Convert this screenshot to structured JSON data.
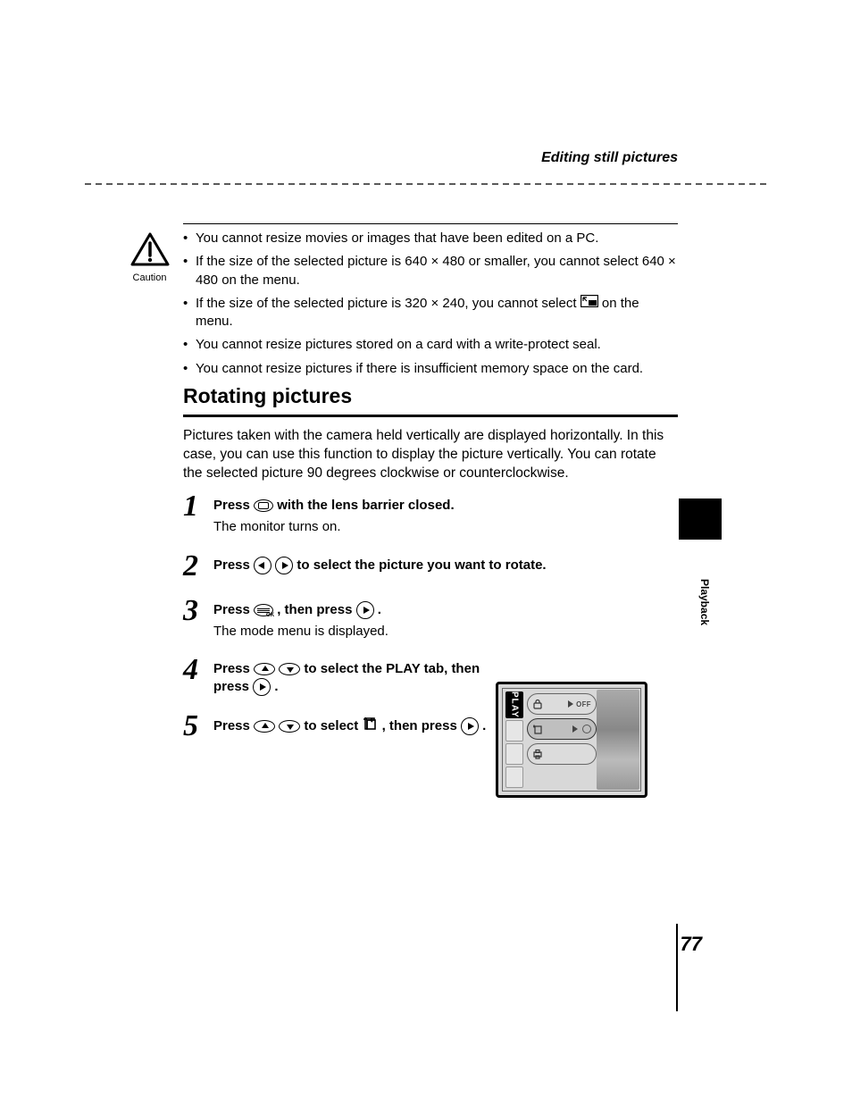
{
  "header": {
    "section_title": "Editing still pictures"
  },
  "caution": {
    "label": "Caution",
    "bullets": [
      "You cannot resize movies or images that have been edited on a PC.",
      "If the size of the selected picture is 640 × 480 or smaller, you cannot select 640 × 480 on the menu.",
      "If the size of the selected picture is 320 × 240, you cannot select __RESIZE_ICON__ on the menu.",
      "You cannot resize pictures stored on a card with a write-protect seal.",
      "You cannot resize pictures if there is insufficient memory space on the card."
    ]
  },
  "section": {
    "heading": "Rotating pictures",
    "intro": "Pictures taken with the camera held vertically are displayed horizontally. In this case, you can use this function to display the picture vertically. You can rotate the selected picture 90 degrees clockwise or counterclockwise."
  },
  "steps": [
    {
      "num": "1",
      "instr_pre": "Press ",
      "icon": "monitor-oval",
      "instr_post": " with the lens barrier closed.",
      "sub": "The monitor turns on."
    },
    {
      "num": "2",
      "instr_pre": "Press  ",
      "icon": "left-right",
      "instr_post": "  to select the picture you want to rotate."
    },
    {
      "num": "3",
      "instr_pre": "Press ",
      "icon": "menu-ok",
      "instr_mid": " , then press ",
      "icon2": "right",
      "instr_post": " .",
      "sub": "The mode menu is displayed."
    },
    {
      "num": "4",
      "instr_pre": "Press ",
      "icon": "up-down",
      "instr_mid": "  to select the PLAY tab, then press ",
      "icon2": "right",
      "instr_post": " ."
    },
    {
      "num": "5",
      "instr_pre": "Press ",
      "icon": "up-down",
      "instr_mid": "  to select ",
      "icon2": "rotate",
      "instr_post": " , then press ",
      "icon3": "right",
      "instr_tail": " ."
    }
  ],
  "figure": {
    "tabs": {
      "active": "PLAY",
      "inactive_count": 3
    },
    "menu": [
      {
        "icon": "lock",
        "value": "OFF",
        "selected": false
      },
      {
        "icon": "rotate",
        "value": "",
        "selected": true
      },
      {
        "icon": "print",
        "value": "",
        "selected": false
      }
    ]
  },
  "side": {
    "label": "Playback"
  },
  "footer": {
    "page_number": "77"
  },
  "style": {
    "body_font_size": 15,
    "heading_font_size": 23,
    "step_num_font_size": 34,
    "step_num_font": "Times New Roman italic bold",
    "text_color": "#000000",
    "background": "#ffffff",
    "dashed_color": "#5a5a5a",
    "figure_bg": "#d8d8d8",
    "figure_highlight_bg": "#bfbfbf",
    "figure_tab_active_bg": "#000000",
    "figure_tab_active_fg": "#ffffff"
  }
}
